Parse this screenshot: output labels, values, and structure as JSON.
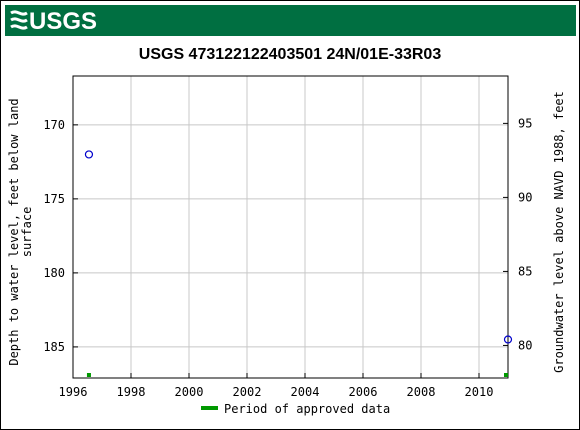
{
  "header": {
    "logo_text": "USGS",
    "banner_color": "#006f41"
  },
  "chart_data": {
    "type": "scatter",
    "title": "USGS 473122122403501 24N/01E-33R03",
    "ylabel_left": [
      "Depth to water level, feet below land",
      "surface"
    ],
    "ylabel_right": "Groundwater level above NAVD 1988, feet",
    "xlim": [
      1996,
      2011
    ],
    "ylim_left": [
      187.1,
      166.7
    ],
    "ylim_right_ticks": [
      95,
      90,
      85,
      80
    ],
    "right_offset": 264.9,
    "x_ticks": [
      "1996",
      "1998",
      "2000",
      "2002",
      "2004",
      "2006",
      "2008",
      "2010"
    ],
    "y_ticks_left": [
      "170",
      "175",
      "180",
      "185"
    ],
    "y_ticks_right": [
      "95",
      "90",
      "85",
      "80"
    ],
    "grid": true,
    "series": [
      {
        "marker": "circle-open",
        "color": "#0000cc",
        "points": [
          {
            "x": 1996.55,
            "y": 172.0
          },
          {
            "x": 2011.0,
            "y": 184.5
          }
        ]
      }
    ],
    "approved_periods": [
      {
        "x": 1996.55
      },
      {
        "x": 2011.0
      }
    ],
    "legend": {
      "label": "Period of approved data",
      "color": "#009900",
      "placement": "bottom-center"
    }
  }
}
